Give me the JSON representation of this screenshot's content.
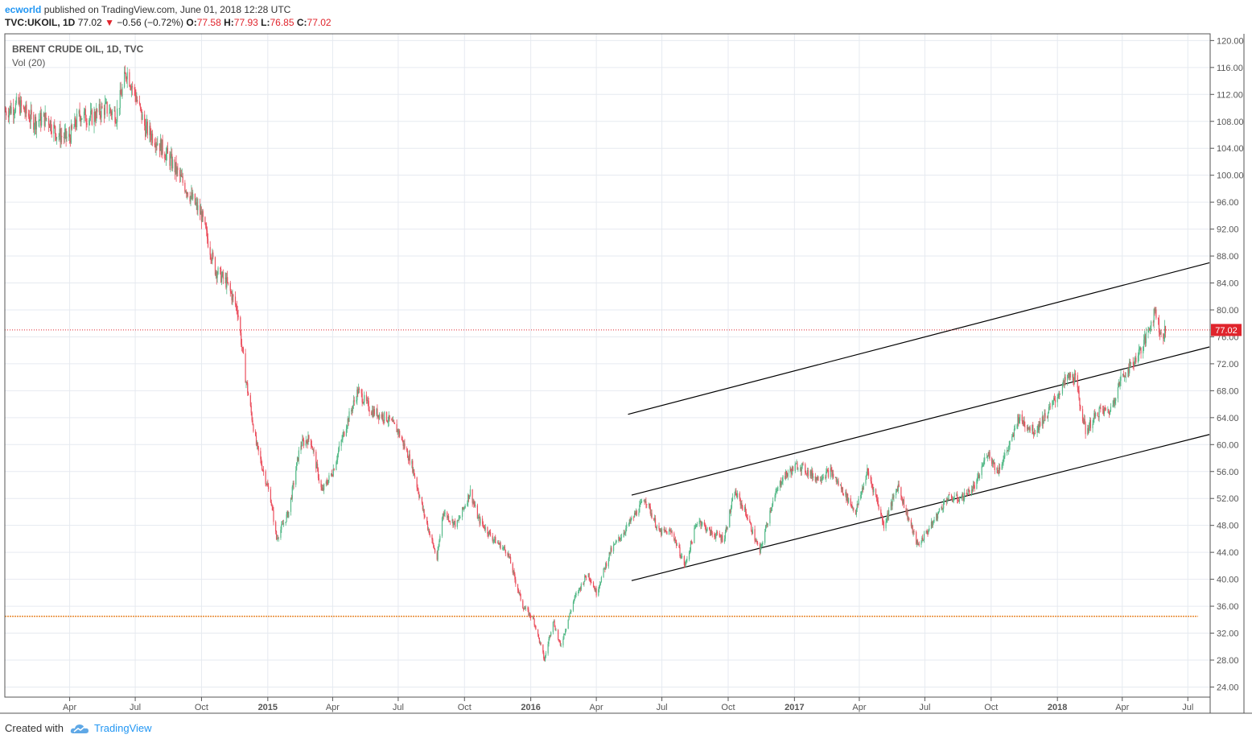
{
  "header": {
    "user": "ecworld",
    "published": "published on TradingView.com, June 01, 2018 12:28 UTC",
    "symbol": "TVC:UKOIL, 1D",
    "last": "77.02",
    "arrow": "▼",
    "change": "−0.56 (−0.72%)",
    "o_label": "O:",
    "o_val": "77.58",
    "h_label": "H:",
    "h_val": "77.93",
    "l_label": "L:",
    "l_val": "76.85",
    "c_label": "C:",
    "c_val": "77.02"
  },
  "footer": {
    "created_with": "Created with",
    "brand": "TradingView"
  },
  "colors": {
    "up": "#53b987",
    "down": "#eb4d5c",
    "grid": "#e6eaf0",
    "price_line": "#e0242c",
    "support_line": "#e8872c",
    "channel": "#000000"
  },
  "chart_data": {
    "type": "candlestick",
    "title": "BRENT CRUDE OIL, 1D, TVC",
    "subtitle": "Vol (20)",
    "y_ticks": [
      "24.00",
      "28.00",
      "32.00",
      "36.00",
      "40.00",
      "44.00",
      "48.00",
      "52.00",
      "56.00",
      "60.00",
      "64.00",
      "68.00",
      "72.00",
      "76.00",
      "80.00",
      "84.00",
      "88.00",
      "92.00",
      "96.00",
      "100.00",
      "104.00",
      "108.00",
      "112.00",
      "116.00",
      "120.00"
    ],
    "ylim": [
      22.5,
      121
    ],
    "x_ticks": [
      {
        "label": "Apr",
        "date": "2014-04-01",
        "bold": false
      },
      {
        "label": "Jul",
        "date": "2014-07-01",
        "bold": false
      },
      {
        "label": "Oct",
        "date": "2014-10-01",
        "bold": false
      },
      {
        "label": "2015",
        "date": "2015-01-01",
        "bold": true
      },
      {
        "label": "Apr",
        "date": "2015-04-01",
        "bold": false
      },
      {
        "label": "Jul",
        "date": "2015-07-01",
        "bold": false
      },
      {
        "label": "Oct",
        "date": "2015-10-01",
        "bold": false
      },
      {
        "label": "2016",
        "date": "2016-01-01",
        "bold": true
      },
      {
        "label": "Apr",
        "date": "2016-04-01",
        "bold": false
      },
      {
        "label": "Jul",
        "date": "2016-07-01",
        "bold": false
      },
      {
        "label": "Oct",
        "date": "2016-10-01",
        "bold": false
      },
      {
        "label": "2017",
        "date": "2017-01-01",
        "bold": true
      },
      {
        "label": "Apr",
        "date": "2017-04-01",
        "bold": false
      },
      {
        "label": "Jul",
        "date": "2017-07-01",
        "bold": false
      },
      {
        "label": "Oct",
        "date": "2017-10-01",
        "bold": false
      },
      {
        "label": "2018",
        "date": "2018-01-01",
        "bold": true
      },
      {
        "label": "Apr",
        "date": "2018-04-01",
        "bold": false
      },
      {
        "label": "Jul",
        "date": "2018-07-01",
        "bold": false
      }
    ],
    "last_price": "77.02",
    "path": [
      [
        "2014-01-02",
        109.5
      ],
      [
        "2014-01-20",
        110.5
      ],
      [
        "2014-02-10",
        108
      ],
      [
        "2014-03-01",
        108.5
      ],
      [
        "2014-03-15",
        106
      ],
      [
        "2014-03-31",
        105.5
      ],
      [
        "2014-04-15",
        109
      ],
      [
        "2014-05-01",
        108.5
      ],
      [
        "2014-05-20",
        110
      ],
      [
        "2014-06-05",
        109
      ],
      [
        "2014-06-19",
        115.5
      ],
      [
        "2014-07-01",
        112
      ],
      [
        "2014-07-15",
        107
      ],
      [
        "2014-08-01",
        105
      ],
      [
        "2014-08-20",
        102
      ],
      [
        "2014-09-10",
        98
      ],
      [
        "2014-10-01",
        94
      ],
      [
        "2014-10-20",
        86
      ],
      [
        "2014-11-05",
        84
      ],
      [
        "2014-11-20",
        80
      ],
      [
        "2014-12-01",
        70
      ],
      [
        "2014-12-16",
        60
      ],
      [
        "2015-01-05",
        52
      ],
      [
        "2015-01-13",
        46
      ],
      [
        "2015-01-30",
        50
      ],
      [
        "2015-02-15",
        60
      ],
      [
        "2015-03-01",
        61
      ],
      [
        "2015-03-17",
        53
      ],
      [
        "2015-04-01",
        56
      ],
      [
        "2015-04-20",
        63
      ],
      [
        "2015-05-06",
        68
      ],
      [
        "2015-05-25",
        65
      ],
      [
        "2015-06-15",
        64
      ],
      [
        "2015-07-01",
        62
      ],
      [
        "2015-07-20",
        57
      ],
      [
        "2015-08-05",
        50
      ],
      [
        "2015-08-24",
        43
      ],
      [
        "2015-09-01",
        50
      ],
      [
        "2015-09-20",
        48
      ],
      [
        "2015-10-09",
        53
      ],
      [
        "2015-10-20",
        49
      ],
      [
        "2015-11-10",
        46
      ],
      [
        "2015-11-30",
        44
      ],
      [
        "2015-12-10",
        40
      ],
      [
        "2015-12-21",
        36
      ],
      [
        "2016-01-05",
        34
      ],
      [
        "2016-01-20",
        28
      ],
      [
        "2016-02-01",
        34
      ],
      [
        "2016-02-11",
        30
      ],
      [
        "2016-03-01",
        37
      ],
      [
        "2016-03-20",
        41
      ],
      [
        "2016-04-01",
        38
      ],
      [
        "2016-04-20",
        44
      ],
      [
        "2016-05-15",
        48
      ],
      [
        "2016-06-08",
        52
      ],
      [
        "2016-06-27",
        47
      ],
      [
        "2016-07-15",
        47
      ],
      [
        "2016-08-02",
        42
      ],
      [
        "2016-08-20",
        49
      ],
      [
        "2016-09-05",
        47
      ],
      [
        "2016-09-25",
        46
      ],
      [
        "2016-10-10",
        53
      ],
      [
        "2016-10-25",
        50
      ],
      [
        "2016-11-14",
        44
      ],
      [
        "2016-11-30",
        51
      ],
      [
        "2016-12-15",
        55
      ],
      [
        "2017-01-06",
        57
      ],
      [
        "2017-02-01",
        55
      ],
      [
        "2017-02-20",
        56
      ],
      [
        "2017-03-10",
        53
      ],
      [
        "2017-03-27",
        50
      ],
      [
        "2017-04-12",
        56
      ],
      [
        "2017-04-25",
        52
      ],
      [
        "2017-05-05",
        48
      ],
      [
        "2017-05-25",
        54
      ],
      [
        "2017-06-05",
        50
      ],
      [
        "2017-06-21",
        45
      ],
      [
        "2017-07-10",
        48
      ],
      [
        "2017-07-31",
        52
      ],
      [
        "2017-08-20",
        52
      ],
      [
        "2017-09-10",
        54
      ],
      [
        "2017-09-26",
        59
      ],
      [
        "2017-10-10",
        56
      ],
      [
        "2017-10-31",
        61
      ],
      [
        "2017-11-07",
        64
      ],
      [
        "2017-11-30",
        62
      ],
      [
        "2017-12-20",
        65
      ],
      [
        "2018-01-15",
        70
      ],
      [
        "2018-01-25",
        70
      ],
      [
        "2018-02-09",
        62
      ],
      [
        "2018-02-28",
        65
      ],
      [
        "2018-03-15",
        65
      ],
      [
        "2018-03-31",
        70
      ],
      [
        "2018-04-15",
        72
      ],
      [
        "2018-05-01",
        75
      ],
      [
        "2018-05-17",
        80
      ],
      [
        "2018-05-25",
        76
      ],
      [
        "2018-06-01",
        77.02
      ]
    ],
    "drawings": [
      {
        "kind": "channel-upper",
        "from": [
          "2016-05-15",
          64.5
        ],
        "to": [
          "2018-07-31",
          87
        ]
      },
      {
        "kind": "channel-middle",
        "from": [
          "2016-05-20",
          52.5
        ],
        "to": [
          "2018-07-31",
          74.5
        ]
      },
      {
        "kind": "channel-lower",
        "from": [
          "2016-05-20",
          39.8
        ],
        "to": [
          "2018-07-31",
          61.5
        ]
      },
      {
        "kind": "horizontal-support",
        "from": [
          "2014-01-01",
          34.5
        ],
        "to": [
          "2018-07-15",
          34.5
        ]
      }
    ]
  }
}
